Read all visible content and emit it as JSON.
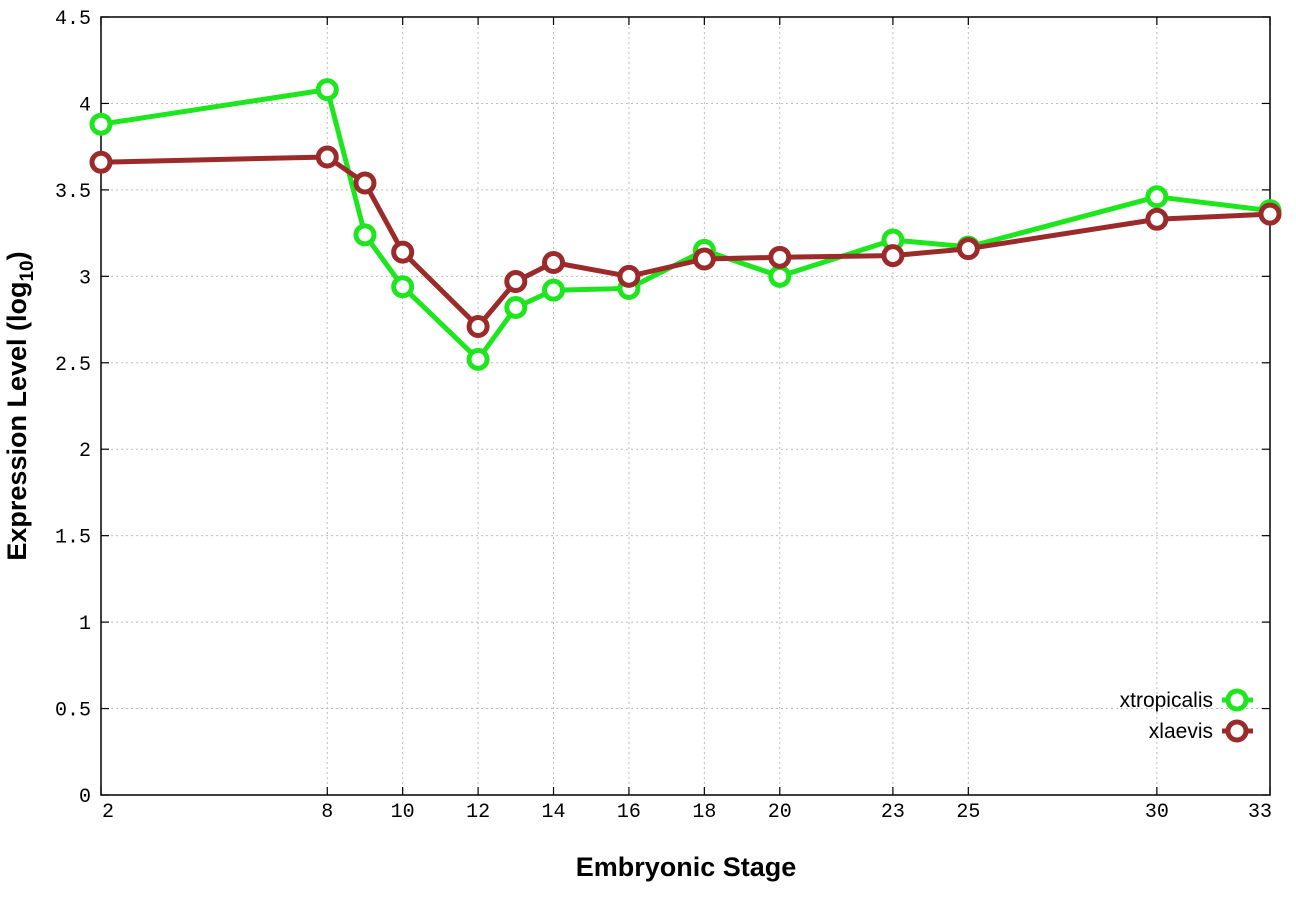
{
  "chart_data": {
    "type": "line",
    "title": "",
    "xlabel": "Embryonic Stage",
    "ylabel_main": "Expression Level (log",
    "ylabel_sub": "10",
    "ylabel_close": ")",
    "x": [
      2,
      8,
      9,
      10,
      12,
      13,
      14,
      16,
      18,
      20,
      23,
      25,
      30,
      33
    ],
    "xticks": [
      2,
      8,
      10,
      12,
      14,
      16,
      18,
      20,
      23,
      25,
      30,
      33
    ],
    "xtick_labels": [
      "2",
      "8",
      "10",
      "12",
      "14",
      "16",
      "18",
      "20",
      "23",
      "25",
      "30",
      "33"
    ],
    "xlim": [
      2,
      33
    ],
    "yticks": [
      0,
      0.5,
      1,
      1.5,
      2,
      2.5,
      3,
      3.5,
      4,
      4.5
    ],
    "ytick_labels": [
      "0",
      "0.5",
      "1",
      "1.5",
      "2",
      "2.5",
      "3",
      "3.5",
      "4",
      "4.5"
    ],
    "ylim": [
      0,
      4.5
    ],
    "grid": true,
    "legend_position": "bottom-right",
    "series": [
      {
        "name": "xtropicalis",
        "color": "#1ee61e",
        "values": [
          3.88,
          4.08,
          3.24,
          2.94,
          2.52,
          2.82,
          2.92,
          2.93,
          3.15,
          3.0,
          3.21,
          3.17,
          3.46,
          3.38
        ]
      },
      {
        "name": "xlaevis",
        "color": "#9b2a2a",
        "values": [
          3.66,
          3.69,
          3.54,
          3.14,
          2.71,
          2.97,
          3.08,
          3.0,
          3.1,
          3.11,
          3.12,
          3.16,
          3.33,
          3.36
        ]
      }
    ]
  }
}
